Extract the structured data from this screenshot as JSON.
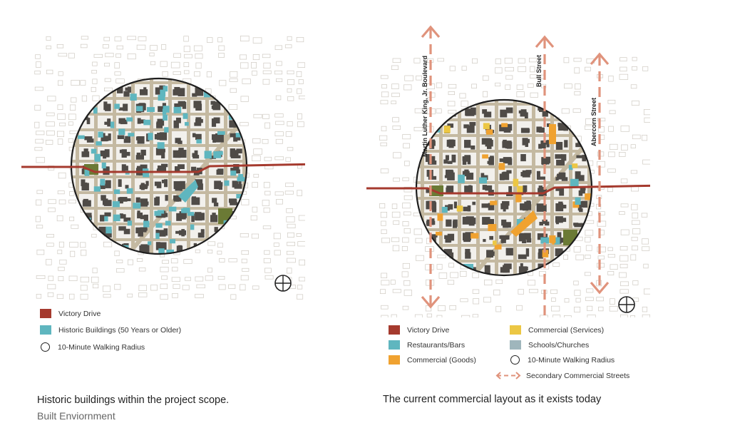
{
  "left_panel": {
    "legend": [
      {
        "label": "Victory Drive",
        "color": "#a53a2e",
        "kind": "square"
      },
      {
        "label": "Historic Buildings (50 Years or Older)",
        "color": "#5fb6bf",
        "kind": "square"
      },
      {
        "label": "10-Minute Walking Radius",
        "color": "#222222",
        "kind": "ring"
      }
    ],
    "caption": "Historic buildings within the project scope.",
    "subcaption": "Built Enviornment"
  },
  "right_panel": {
    "street_labels": {
      "mlk": "Martin Luther King, Jr. Boulevard",
      "bull": "Bull Street",
      "abercorn": "Abercorn Street"
    },
    "legend": [
      {
        "label": "Victory Drive",
        "color": "#a53a2e",
        "kind": "square"
      },
      {
        "label": "Restaurants/Bars",
        "color": "#5fb6bf",
        "kind": "square"
      },
      {
        "label": "Commercial (Goods)",
        "color": "#f0a230",
        "kind": "square"
      },
      {
        "label": "Commercial (Services)",
        "color": "#ecc744",
        "kind": "square"
      },
      {
        "label": "Schools/Churches",
        "color": "#9fb6bc",
        "kind": "square"
      },
      {
        "label": "10-Minute Walking Radius",
        "color": "#222222",
        "kind": "ring"
      },
      {
        "label": "Secondary Commercial Streets",
        "color": "#e0937c",
        "kind": "dashed-arrow"
      }
    ],
    "caption": "The current commercial layout as it exists today"
  },
  "colors": {
    "victory_drive": "#a53a2e",
    "historic": "#5fb6bf",
    "restaurants": "#5fb6bf",
    "commercial_goods": "#f0a230",
    "commercial_services": "#ecc744",
    "schools_churches": "#9fb6bc",
    "secondary_streets": "#e0937c",
    "streets": "#c4b9a1",
    "park": "#6b7a35",
    "buildings": "#4f4b47"
  }
}
